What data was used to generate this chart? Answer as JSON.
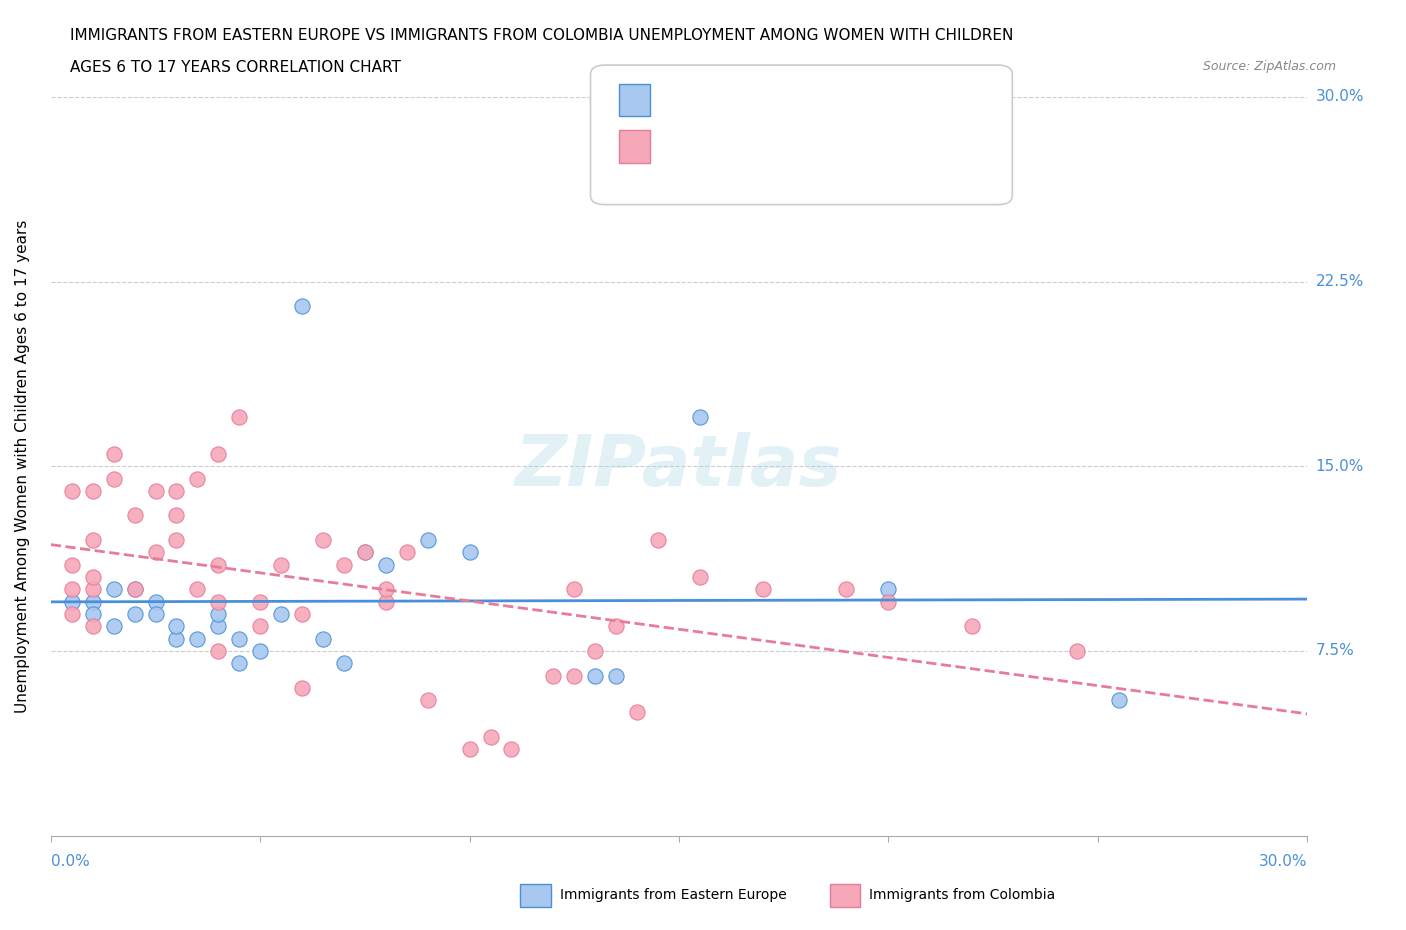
{
  "title_line1": "IMMIGRANTS FROM EASTERN EUROPE VS IMMIGRANTS FROM COLOMBIA UNEMPLOYMENT AMONG WOMEN WITH CHILDREN",
  "title_line2": "AGES 6 TO 17 YEARS CORRELATION CHART",
  "source_text": "Source: ZipAtlas.com",
  "ylabel": "Unemployment Among Women with Children Ages 6 to 17 years",
  "ytick_values": [
    0,
    0.075,
    0.15,
    0.225,
    0.3
  ],
  "xlim": [
    0.0,
    0.3
  ],
  "ylim": [
    0.0,
    0.3
  ],
  "watermark": "ZIPatlas",
  "color_eastern": "#a8c8f0",
  "color_colombia": "#f5a8b8",
  "color_line_eastern": "#4a90d9",
  "color_line_colombia": "#e87a9a",
  "eastern_europe_x": [
    0.005,
    0.01,
    0.01,
    0.015,
    0.015,
    0.02,
    0.02,
    0.025,
    0.025,
    0.03,
    0.03,
    0.035,
    0.04,
    0.04,
    0.045,
    0.045,
    0.05,
    0.055,
    0.06,
    0.065,
    0.07,
    0.075,
    0.08,
    0.09,
    0.1,
    0.13,
    0.135,
    0.155,
    0.2,
    0.255
  ],
  "eastern_europe_y": [
    0.095,
    0.095,
    0.09,
    0.085,
    0.1,
    0.09,
    0.1,
    0.095,
    0.09,
    0.08,
    0.085,
    0.08,
    0.085,
    0.09,
    0.07,
    0.08,
    0.075,
    0.09,
    0.215,
    0.08,
    0.07,
    0.115,
    0.11,
    0.12,
    0.115,
    0.065,
    0.065,
    0.17,
    0.1,
    0.055
  ],
  "colombia_x": [
    0.005,
    0.005,
    0.005,
    0.005,
    0.01,
    0.01,
    0.01,
    0.01,
    0.01,
    0.015,
    0.015,
    0.02,
    0.02,
    0.025,
    0.025,
    0.03,
    0.03,
    0.03,
    0.035,
    0.035,
    0.04,
    0.04,
    0.04,
    0.04,
    0.045,
    0.05,
    0.05,
    0.055,
    0.06,
    0.06,
    0.065,
    0.07,
    0.075,
    0.08,
    0.08,
    0.085,
    0.09,
    0.1,
    0.105,
    0.11,
    0.12,
    0.125,
    0.125,
    0.13,
    0.135,
    0.14,
    0.145,
    0.155,
    0.17,
    0.19,
    0.2,
    0.22,
    0.245
  ],
  "colombia_y": [
    0.09,
    0.1,
    0.11,
    0.14,
    0.085,
    0.1,
    0.105,
    0.12,
    0.14,
    0.145,
    0.155,
    0.1,
    0.13,
    0.115,
    0.14,
    0.12,
    0.13,
    0.14,
    0.1,
    0.145,
    0.075,
    0.095,
    0.11,
    0.155,
    0.17,
    0.085,
    0.095,
    0.11,
    0.06,
    0.09,
    0.12,
    0.11,
    0.115,
    0.095,
    0.1,
    0.115,
    0.055,
    0.035,
    0.04,
    0.035,
    0.065,
    0.065,
    0.1,
    0.075,
    0.085,
    0.05,
    0.12,
    0.105,
    0.1,
    0.1,
    0.095,
    0.085,
    0.075
  ]
}
